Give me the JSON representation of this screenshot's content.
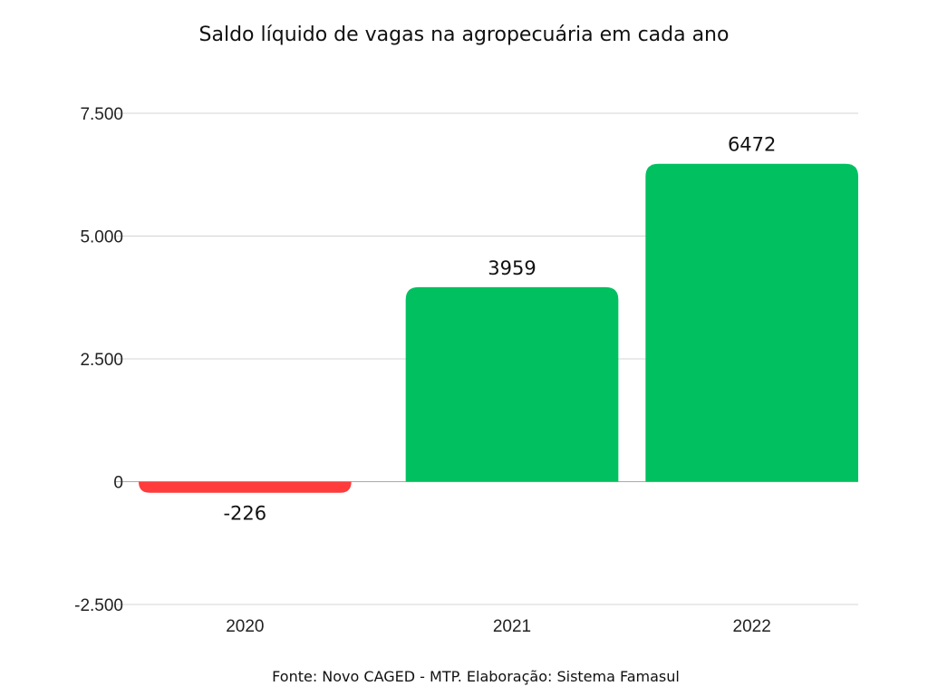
{
  "chart_data": {
    "type": "bar",
    "title": "Saldo líquido de vagas na agropecuária em cada ano",
    "categories": [
      "2020",
      "2021",
      "2022"
    ],
    "values": [
      -226,
      3959,
      6472
    ],
    "data_labels": [
      "-226",
      "3959",
      "6472"
    ],
    "bar_colors": [
      "#ff3b3b",
      "#00c060",
      "#00c060"
    ],
    "ylim": [
      -2500,
      7500
    ],
    "yticks": [
      -2500,
      0,
      2500,
      5000,
      7500
    ],
    "ytick_labels": [
      "-2.500",
      "0",
      "2.500",
      "5.000",
      "7.500"
    ],
    "grid": true,
    "xlabel": "",
    "ylabel": "",
    "source": "Fonte: Novo CAGED - MTP. Elaboração: Sistema Famasul"
  }
}
